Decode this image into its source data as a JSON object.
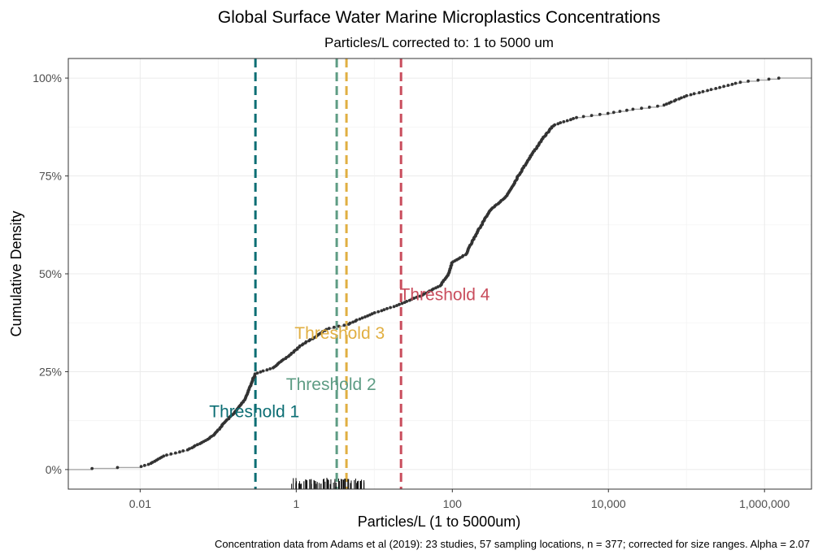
{
  "chart_data": {
    "type": "line",
    "title": "Global Surface Water Marine Microplastics Concentrations",
    "subtitle": "Particles/L corrected to: 1 to 5000 um",
    "xlabel": "Particles/L (1 to 5000um)",
    "ylabel": "Cumulative Density",
    "x_scale": "log10",
    "xlim": [
      0.0012,
      4000000
    ],
    "ylim": [
      -0.05,
      1.05
    ],
    "x_ticks": [
      0.01,
      1,
      100,
      10000,
      1000000
    ],
    "x_tick_labels": [
      "0.01",
      "1",
      "100",
      "10,000",
      "1,000,000"
    ],
    "y_ticks": [
      0,
      0.25,
      0.5,
      0.75,
      1.0
    ],
    "y_tick_labels": [
      "0%",
      "25%",
      "50%",
      "75%",
      "100%"
    ],
    "grid": true,
    "caption": "Concentration data from Adams et al (2019): 23 studies, 57 sampling locations, n = 377; corrected for size ranges. Alpha =  2.07",
    "series": [
      {
        "line_color": "#a6a6a6",
        "point_color": "#333333",
        "ecdf_knots": [
          [
            0.0012,
            0.0
          ],
          [
            0.0027,
            0.003
          ],
          [
            0.0105,
            0.008
          ],
          [
            0.0135,
            0.015
          ],
          [
            0.02,
            0.035
          ],
          [
            0.04,
            0.05
          ],
          [
            0.07,
            0.075
          ],
          [
            0.09,
            0.09
          ],
          [
            0.12,
            0.12
          ],
          [
            0.17,
            0.15
          ],
          [
            0.22,
            0.18
          ],
          [
            0.3,
            0.245
          ],
          [
            0.5,
            0.26
          ],
          [
            0.8,
            0.29
          ],
          [
            1.2,
            0.32
          ],
          [
            1.8,
            0.34
          ],
          [
            2.5,
            0.36
          ],
          [
            4.5,
            0.37
          ],
          [
            6.5,
            0.385
          ],
          [
            10,
            0.4
          ],
          [
            20,
            0.42
          ],
          [
            40,
            0.445
          ],
          [
            70,
            0.47
          ],
          [
            90,
            0.5
          ],
          [
            100,
            0.53
          ],
          [
            150,
            0.55
          ],
          [
            200,
            0.6
          ],
          [
            300,
            0.66
          ],
          [
            500,
            0.7
          ],
          [
            700,
            0.75
          ],
          [
            1000,
            0.8
          ],
          [
            1500,
            0.85
          ],
          [
            2000,
            0.88
          ],
          [
            4000,
            0.9
          ],
          [
            10000,
            0.91
          ],
          [
            20000,
            0.92
          ],
          [
            50000,
            0.93
          ],
          [
            100000,
            0.955
          ],
          [
            200000,
            0.97
          ],
          [
            500000,
            0.99
          ],
          [
            1500000,
            1.0
          ],
          [
            4000000,
            1.0
          ]
        ],
        "n_points": 377
      }
    ],
    "thresholds": [
      {
        "label": "Threshold 1",
        "x": 0.3,
        "color": "#0c6e74",
        "label_x": 0.29,
        "label_y": 0.148
      },
      {
        "label": "Threshold 2",
        "x": 3.3,
        "color": "#5e9c84",
        "label_x": 2.8,
        "label_y": 0.218
      },
      {
        "label": "Threshold 3",
        "x": 4.4,
        "color": "#e1af42",
        "label_x": 3.6,
        "label_y": 0.348
      },
      {
        "label": "Threshold 4",
        "x": 22,
        "color": "#c94d5d",
        "label_x": 80,
        "label_y": 0.447
      }
    ],
    "rug": {
      "min_x": 0.9,
      "max_x": 7.5,
      "count": 60
    }
  }
}
